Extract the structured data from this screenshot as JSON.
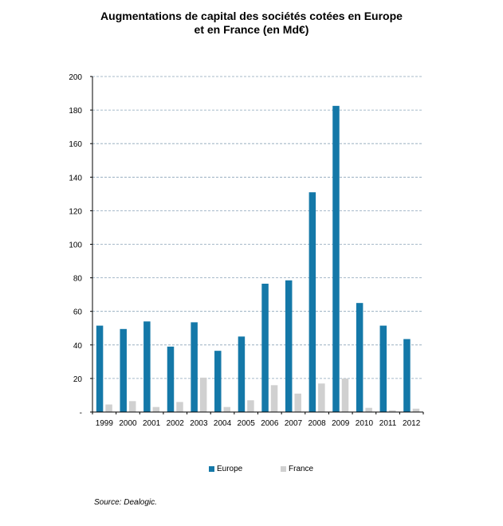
{
  "chart_data": {
    "type": "bar",
    "title": [
      "Augmentations de capital des sociétés cotées en Europe",
      "et en France (en Md€)"
    ],
    "categories": [
      "1999",
      "2000",
      "2001",
      "2002",
      "2003",
      "2004",
      "2005",
      "2006",
      "2007",
      "2008",
      "2009",
      "2010",
      "2011",
      "2012"
    ],
    "series": [
      {
        "name": "Europe",
        "color": "#1478a8",
        "values": [
          51.5,
          49.5,
          54,
          39,
          53.5,
          36.5,
          45,
          76.5,
          78.5,
          131,
          182.5,
          65,
          51.5,
          43.5
        ]
      },
      {
        "name": "France",
        "color": "#d0d0d0",
        "values": [
          4.5,
          6.5,
          3,
          6,
          20.5,
          3,
          7,
          16,
          11,
          17,
          20,
          2.5,
          1,
          2
        ]
      }
    ],
    "ylim": [
      0,
      200
    ],
    "yticks": [
      "-",
      "20",
      "40",
      "60",
      "80",
      "100",
      "120",
      "140",
      "160",
      "180",
      "200"
    ],
    "grid": true,
    "legend_position": "bottom",
    "source": "Source: Dealogic."
  }
}
